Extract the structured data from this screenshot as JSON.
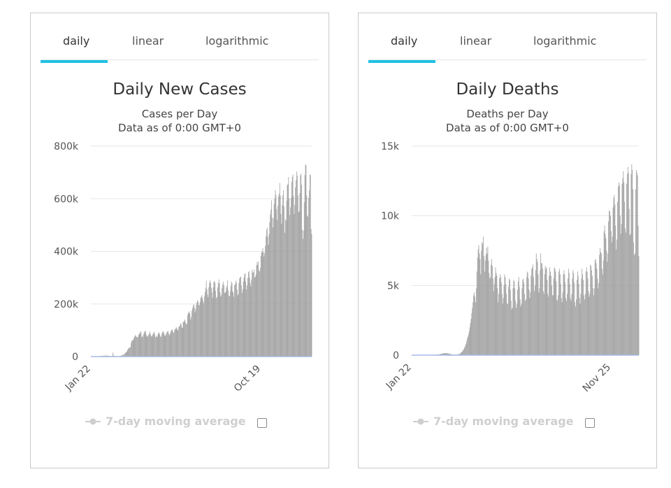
{
  "tabs": [
    "daily",
    "linear",
    "logarithmic"
  ],
  "active_tab": "daily",
  "legend_label": "7-day moving average",
  "colors": {
    "tab_underline": "#1fc1e4",
    "bar": "#999999",
    "baseline": "#a8b8e8",
    "legend_muted": "#cfcfcf"
  },
  "chart_data": [
    {
      "type": "bar",
      "title": "Daily New Cases",
      "subtitle": "Cases per Day",
      "note": "Data as of 0:00 GMT+0",
      "x_tick_labels": [
        "Jan 22",
        "Oct 19"
      ],
      "y_tick_labels": [
        "0",
        "200k",
        "400k",
        "600k",
        "800k"
      ],
      "ylim": [
        0,
        800000
      ],
      "x_start": "2020-01-22",
      "x_end": "2021-01-08",
      "grid": true,
      "series": [
        {
          "values": [
            600,
            2000,
            1000,
            1500,
            2000,
            2500,
            2700,
            3600,
            2000,
            2800,
            3300,
            3900,
            4000,
            3800,
            3700,
            3100,
            2600,
            2600,
            2000,
            2100,
            2200,
            1800,
            1200,
            15000,
            5800,
            2800,
            2000,
            1800,
            1500,
            1300,
            1200,
            600,
            1200,
            2000,
            2300,
            3000,
            3500,
            4100,
            4800,
            5800,
            7900,
            8800,
            11400,
            14500,
            16200,
            18700,
            23300,
            27500,
            31000,
            33000,
            34700,
            36000,
            52000,
            60000,
            60000,
            63000,
            66000,
            73000,
            77000,
            82000,
            78000,
            75000,
            73000,
            75000,
            82000,
            86000,
            89000,
            96000,
            92000,
            74000,
            80000,
            75000,
            86000,
            92000,
            96000,
            98000,
            86000,
            78000,
            75000,
            79000,
            82000,
            88000,
            94000,
            85000,
            78000,
            76000,
            80000,
            86000,
            91000,
            94000,
            84000,
            73000,
            79000,
            75000,
            76000,
            87000,
            89000,
            92000,
            83000,
            76000,
            76000,
            87000,
            93000,
            94000,
            95000,
            85000,
            79000,
            80000,
            86000,
            92000,
            95000,
            97000,
            88000,
            80000,
            85000,
            93000,
            99000,
            101000,
            103000,
            94000,
            90000,
            98000,
            104000,
            106000,
            112000,
            107000,
            102000,
            99000,
            112000,
            116000,
            118000,
            127000,
            122000,
            111000,
            109000,
            132000,
            130000,
            136000,
            141000,
            130000,
            123000,
            125000,
            156000,
            165000,
            167000,
            172000,
            162000,
            140000,
            150000,
            175000,
            185000,
            195000,
            199000,
            187000,
            168000,
            180000,
            196000,
            206000,
            214000,
            209000,
            196000,
            195000,
            207000,
            223000,
            228000,
            234000,
            222000,
            212000,
            203000,
            230000,
            246000,
            262000,
            288000,
            256000,
            236000,
            226000,
            263000,
            280000,
            290000,
            281000,
            262000,
            244000,
            223000,
            262000,
            284000,
            287000,
            280000,
            249000,
            222000,
            227000,
            263000,
            280000,
            293000,
            279000,
            244000,
            228000,
            234000,
            261000,
            275000,
            284000,
            270000,
            243000,
            241000,
            247000,
            262000,
            269000,
            290000,
            252000,
            231000,
            230000,
            247000,
            268000,
            286000,
            279000,
            248000,
            243000,
            227000,
            271000,
            276000,
            289000,
            281000,
            255000,
            232000,
            238000,
            280000,
            297000,
            301000,
            304000,
            271000,
            242000,
            255000,
            285000,
            300000,
            313000,
            318000,
            285000,
            255000,
            271000,
            299000,
            321000,
            325000,
            301000,
            280000,
            267000,
            293000,
            330000,
            320000,
            320000,
            331000,
            301000,
            302000,
            311000,
            347000,
            360000,
            349000,
            361000,
            328000,
            324000,
            338000,
            383000,
            396000,
            399000,
            413000,
            396000,
            380000,
            394000,
            420000,
            458000,
            482000,
            490000,
            454000,
            425000,
            465000,
            510000,
            541000,
            559000,
            594000,
            529000,
            491000,
            525000,
            580000,
            600000,
            632000,
            615000,
            561000,
            519000,
            574000,
            609000,
            620000,
            660000,
            611000,
            542000,
            505000,
            576000,
            613000,
            632000,
            571000,
            471000,
            522000,
            517000,
            593000,
            652000,
            656000,
            683000,
            601000,
            538000,
            567000,
            603000,
            664000,
            683000,
            692000,
            610000,
            542000,
            576000,
            643000,
            671000,
            703000,
            687000,
            613000,
            549000,
            552000,
            621000,
            689000,
            696000,
            653000,
            482000,
            448000,
            479000,
            587000,
            690000,
            730000,
            727000,
            612000,
            536000,
            532000,
            604000,
            632000,
            692000,
            690000,
            485000,
            466000
          ]
        }
      ]
    },
    {
      "type": "bar",
      "title": "Daily Deaths",
      "subtitle": "Deaths per Day",
      "note": "Data as of 0:00 GMT+0",
      "x_tick_labels": [
        "Jan 22",
        "Nov 25"
      ],
      "y_tick_labels": [
        "0",
        "5k",
        "10k",
        "15k"
      ],
      "ylim": [
        0,
        15000
      ],
      "x_start": "2020-01-22",
      "x_end": "2021-01-08",
      "grid": true,
      "series": [
        {
          "values": [
            20,
            30,
            40,
            40,
            40,
            50,
            60,
            80,
            90,
            100,
            110,
            120,
            130,
            140,
            140,
            140,
            150,
            150,
            140,
            130,
            120,
            110,
            90,
            80,
            70,
            60,
            50,
            40,
            40,
            30,
            30,
            30,
            30,
            40,
            50,
            60,
            70,
            90,
            110,
            150,
            200,
            250,
            300,
            380,
            450,
            550,
            650,
            800,
            1000,
            1200,
            1350,
            1500,
            1700,
            2000,
            2300,
            2600,
            3000,
            3400,
            3800,
            4300,
            4500,
            4200,
            3800,
            4800,
            6000,
            7000,
            7600,
            7900,
            7300,
            6900,
            5800,
            7500,
            8100,
            8000,
            8500,
            7100,
            6000,
            6800,
            7200,
            7700,
            7300,
            7800,
            6800,
            5900,
            5500,
            5600,
            6500,
            6900,
            6400,
            5500,
            4600,
            5100,
            5600,
            6300,
            5900,
            5700,
            4800,
            3800,
            4400,
            5500,
            5800,
            5600,
            5200,
            4400,
            3700,
            4100,
            5000,
            5800,
            5600,
            5100,
            4400,
            3700,
            3700,
            4900,
            5500,
            5400,
            4700,
            3900,
            3300,
            3400,
            4800,
            5400,
            5300,
            4800,
            3900,
            3400,
            3700,
            4700,
            5300,
            5600,
            4900,
            4000,
            3500,
            3700,
            4800,
            5400,
            5500,
            5200,
            4400,
            3900,
            4000,
            5600,
            6000,
            5900,
            5500,
            4700,
            4100,
            4500,
            5700,
            6200,
            6300,
            6500,
            5600,
            4600,
            5000,
            6100,
            7300,
            6900,
            6700,
            5800,
            4500,
            4800,
            6100,
            7300,
            6600,
            6600,
            6200,
            4600,
            4400,
            5800,
            6400,
            6200,
            6300,
            5400,
            4400,
            4200,
            5700,
            6300,
            6000,
            5700,
            5000,
            4300,
            4300,
            5500,
            6300,
            6200,
            6000,
            5300,
            4000,
            3900,
            4300,
            6000,
            6200,
            5800,
            5100,
            4100,
            3800,
            4500,
            5800,
            6100,
            5800,
            5200,
            4100,
            3900,
            4400,
            5500,
            6200,
            5900,
            5100,
            4100,
            3900,
            4400,
            5500,
            6100,
            5900,
            5200,
            3800,
            3500,
            4000,
            5400,
            6000,
            5700,
            5100,
            4100,
            3700,
            4400,
            5500,
            6200,
            5800,
            5400,
            4300,
            4000,
            4400,
            6000,
            6300,
            6000,
            5500,
            4600,
            4200,
            4400,
            6500,
            6400,
            6100,
            5700,
            4800,
            4300,
            4800,
            6800,
            6900,
            6600,
            6200,
            5500,
            4800,
            5200,
            7200,
            7700,
            7400,
            7300,
            6200,
            5800,
            6800,
            8900,
            9300,
            8700,
            8400,
            7500,
            6700,
            7300,
            9600,
            10400,
            10300,
            10000,
            8900,
            8100,
            8500,
            10600,
            11300,
            11500,
            10800,
            9300,
            7600,
            8300,
            11000,
            12100,
            12400,
            12200,
            10000,
            8700,
            9400,
            12300,
            12700,
            13200,
            12400,
            11000,
            9100,
            8800,
            12300,
            13000,
            13500,
            13100,
            10500,
            8600,
            8700,
            13000,
            13700,
            13300,
            11900,
            8100,
            7200,
            7300,
            11900,
            13300,
            13100,
            12900,
            9300,
            7100
          ]
        }
      ]
    }
  ]
}
